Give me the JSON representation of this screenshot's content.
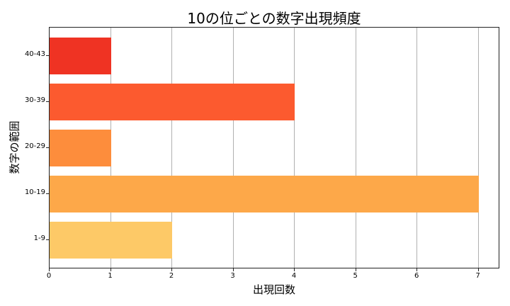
{
  "chart_data": {
    "type": "bar",
    "orientation": "horizontal",
    "title": "10の位ごとの数字出現頻度",
    "xlabel": "出現回数",
    "ylabel": "数字の範囲",
    "categories": [
      "1-9",
      "10-19",
      "20-29",
      "30-39",
      "40-43"
    ],
    "values": [
      2,
      7,
      1,
      4,
      1
    ],
    "colors": [
      "#fdc967",
      "#fda849",
      "#fd8d3c",
      "#fc5a2f",
      "#ef3323"
    ],
    "xlim": [
      0,
      7.35
    ],
    "xticks": [
      "0",
      "1",
      "2",
      "3",
      "4",
      "5",
      "6",
      "7"
    ],
    "grid": "x",
    "legend": null
  }
}
